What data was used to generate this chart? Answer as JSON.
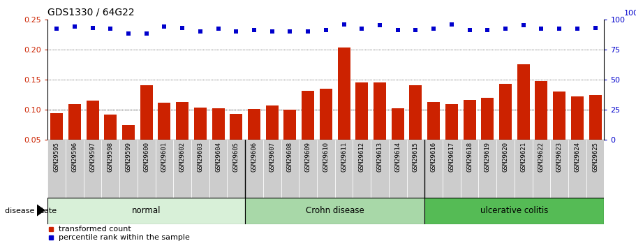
{
  "title": "GDS1330 / 64G22",
  "samples": [
    "GSM29595",
    "GSM29596",
    "GSM29597",
    "GSM29598",
    "GSM29599",
    "GSM29600",
    "GSM29601",
    "GSM29602",
    "GSM29603",
    "GSM29604",
    "GSM29605",
    "GSM29606",
    "GSM29607",
    "GSM29608",
    "GSM29609",
    "GSM29610",
    "GSM29611",
    "GSM29612",
    "GSM29613",
    "GSM29614",
    "GSM29615",
    "GSM29616",
    "GSM29617",
    "GSM29618",
    "GSM29619",
    "GSM29620",
    "GSM29621",
    "GSM29622",
    "GSM29623",
    "GSM29624",
    "GSM29625"
  ],
  "bar_values": [
    0.094,
    0.109,
    0.115,
    0.092,
    0.075,
    0.14,
    0.111,
    0.113,
    0.103,
    0.102,
    0.093,
    0.101,
    0.107,
    0.1,
    0.131,
    0.135,
    0.203,
    0.145,
    0.145,
    0.102,
    0.141,
    0.113,
    0.109,
    0.116,
    0.12,
    0.143,
    0.175,
    0.147,
    0.13,
    0.122,
    0.124
  ],
  "dot_values": [
    92,
    94,
    93,
    92,
    88,
    88,
    94,
    93,
    90,
    92,
    90,
    91,
    90,
    90,
    90,
    91,
    96,
    92,
    95,
    91,
    91,
    92,
    96,
    91,
    91,
    92,
    95,
    92,
    92,
    92,
    93
  ],
  "groups": [
    {
      "label": "normal",
      "start": 0,
      "end": 10,
      "color": "#d8f0d8"
    },
    {
      "label": "Crohn disease",
      "start": 11,
      "end": 20,
      "color": "#a8d8a8"
    },
    {
      "label": "ulcerative colitis",
      "start": 21,
      "end": 30,
      "color": "#55bb55"
    }
  ],
  "bar_color": "#cc2200",
  "dot_color": "#0000cc",
  "ylim_left": [
    0.05,
    0.25
  ],
  "ylim_right": [
    0,
    100
  ],
  "yticks_left": [
    0.05,
    0.1,
    0.15,
    0.2,
    0.25
  ],
  "yticks_right": [
    0,
    25,
    50,
    75,
    100
  ],
  "grid_values": [
    0.1,
    0.15,
    0.2
  ],
  "title_fontsize": 10,
  "tick_label_fontsize": 6.5,
  "legend_items": [
    "transformed count",
    "percentile rank within the sample"
  ],
  "disease_state_label": "disease state",
  "background_color": "#ffffff",
  "xtick_bg_color": "#cccccc",
  "group_border_color": "#000000"
}
